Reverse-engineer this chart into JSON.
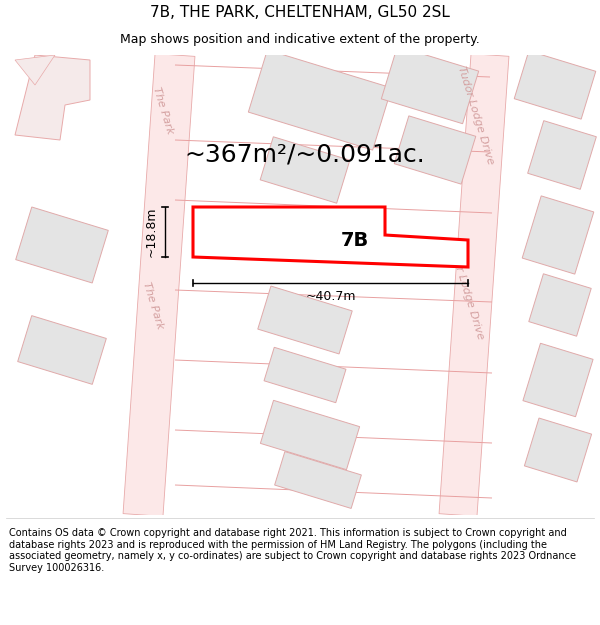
{
  "title": "7B, THE PARK, CHELTENHAM, GL50 2SL",
  "subtitle": "Map shows position and indicative extent of the property.",
  "footer": "Contains OS data © Crown copyright and database right 2021. This information is subject to Crown copyright and database rights 2023 and is reproduced with the permission of HM Land Registry. The polygons (including the associated geometry, namely x, y co-ordinates) are subject to Crown copyright and database rights 2023 Ordnance Survey 100026316.",
  "area_text": "~367m²/~0.091ac.",
  "label_7b": "7B",
  "dim_width": "~40.7m",
  "dim_height": "~18.8m",
  "road_fill": "#fce8e8",
  "road_edge": "#e8aaaa",
  "bld_fill": "#e4e4e4",
  "bld_edge": "#e0aaaa",
  "map_bg": "#faf5f5",
  "highlight_fill": "#ffffff",
  "highlight_edge": "#ff0000",
  "street1_label": "The Park",
  "street2_label": "Tudor Lodge Drive",
  "street_color": "#d4a0a0",
  "title_fontsize": 11,
  "subtitle_fontsize": 9,
  "footer_fontsize": 7,
  "area_fontsize": 18,
  "dim_fontsize": 9,
  "label_fontsize": 14,
  "street_fontsize": 8
}
